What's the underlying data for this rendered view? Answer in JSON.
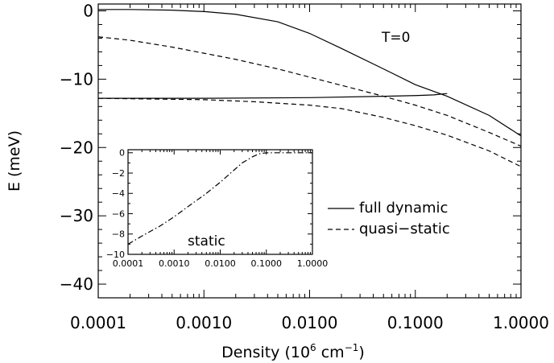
{
  "chart_data": [
    {
      "type": "line",
      "title": "",
      "xlabel": "Density (10",
      "xlabel_sup": "6",
      "xlabel_mid": " cm",
      "xlabel_sup2": "−1",
      "xlabel_end": ")",
      "ylabel": "E  (meV)",
      "x_scale": "log",
      "xlim": [
        0.0001,
        1.0
      ],
      "ylim": [
        -42,
        1
      ],
      "xticks": [
        0.0001,
        0.001,
        0.01,
        0.1,
        1.0
      ],
      "xtick_labels": [
        "0.0001",
        "0.0010",
        "0.0100",
        "0.1000",
        "1.0000"
      ],
      "yticks": [
        0,
        -10,
        -20,
        -30,
        -40
      ],
      "ytick_labels": [
        "0",
        "−10",
        "−20",
        "−30",
        "−40"
      ],
      "annotation": "T=0",
      "legend_position": "center-right",
      "legend": [
        {
          "label": "full dynamic",
          "style": "solid"
        },
        {
          "label": "quasi−static",
          "style": "dashed"
        }
      ],
      "series": [
        {
          "name": "full dynamic",
          "style": "solid",
          "x": [
            0.0001,
            0.0002,
            0.0005,
            0.001,
            0.002,
            0.005,
            0.01,
            0.02,
            0.05,
            0.1,
            0.2,
            0.5,
            1.0
          ],
          "y": [
            0.2,
            0.2,
            0.1,
            -0.1,
            -0.5,
            -1.6,
            -3.3,
            -5.5,
            -8.5,
            -10.8,
            -12.5,
            -15.3,
            -18.3
          ]
        },
        {
          "name": "full dynamic (lower branch)",
          "style": "solid",
          "x": [
            0.0001,
            0.001,
            0.01,
            0.05,
            0.1,
            0.15,
            0.2
          ],
          "y": [
            -12.8,
            -12.8,
            -12.7,
            -12.5,
            -12.4,
            -12.3,
            -12.1
          ]
        },
        {
          "name": "quasi−static",
          "style": "dashed",
          "x": [
            0.0001,
            0.0002,
            0.0005,
            0.001,
            0.002,
            0.005,
            0.01,
            0.02,
            0.05,
            0.1,
            0.2,
            0.5,
            1.0
          ],
          "y": [
            -3.8,
            -4.3,
            -5.3,
            -6.2,
            -7.1,
            -8.5,
            -9.7,
            -10.9,
            -12.5,
            -13.8,
            -15.3,
            -17.8,
            -19.8
          ]
        },
        {
          "name": "quasi−static (lower branch)",
          "style": "dashed",
          "x": [
            0.0001,
            0.001,
            0.003,
            0.01,
            0.02,
            0.05,
            0.1,
            0.2,
            0.5,
            1.0
          ],
          "y": [
            -12.8,
            -13.0,
            -13.3,
            -13.8,
            -14.3,
            -15.6,
            -16.8,
            -18.2,
            -20.5,
            -22.8
          ]
        }
      ]
    },
    {
      "type": "line",
      "title": "",
      "annotation": "static",
      "x_scale": "log",
      "xlim": [
        0.0001,
        1.0
      ],
      "ylim": [
        -10,
        0.3
      ],
      "xticks": [
        0.0001,
        0.001,
        0.01,
        0.1,
        1.0
      ],
      "xtick_labels": [
        "0.0001",
        "0.0010",
        "0.0100",
        "0.1000",
        "1.0000"
      ],
      "yticks": [
        0,
        -2,
        -4,
        -6,
        -8,
        -10
      ],
      "ytick_labels": [
        "0",
        "−2",
        "−4",
        "−6",
        "−8",
        "−10"
      ],
      "series": [
        {
          "style": "dashdot",
          "x": [
            0.0001,
            0.0002,
            0.0005,
            0.001,
            0.002,
            0.005,
            0.01,
            0.02,
            0.03,
            0.05,
            0.07,
            0.1,
            0.2,
            0.5,
            1.0
          ],
          "y": [
            -9.0,
            -8.2,
            -7.2,
            -6.3,
            -5.3,
            -4.0,
            -2.9,
            -1.7,
            -1.0,
            -0.4,
            -0.1,
            0.0,
            0.0,
            0.0,
            0.0
          ]
        }
      ]
    }
  ]
}
